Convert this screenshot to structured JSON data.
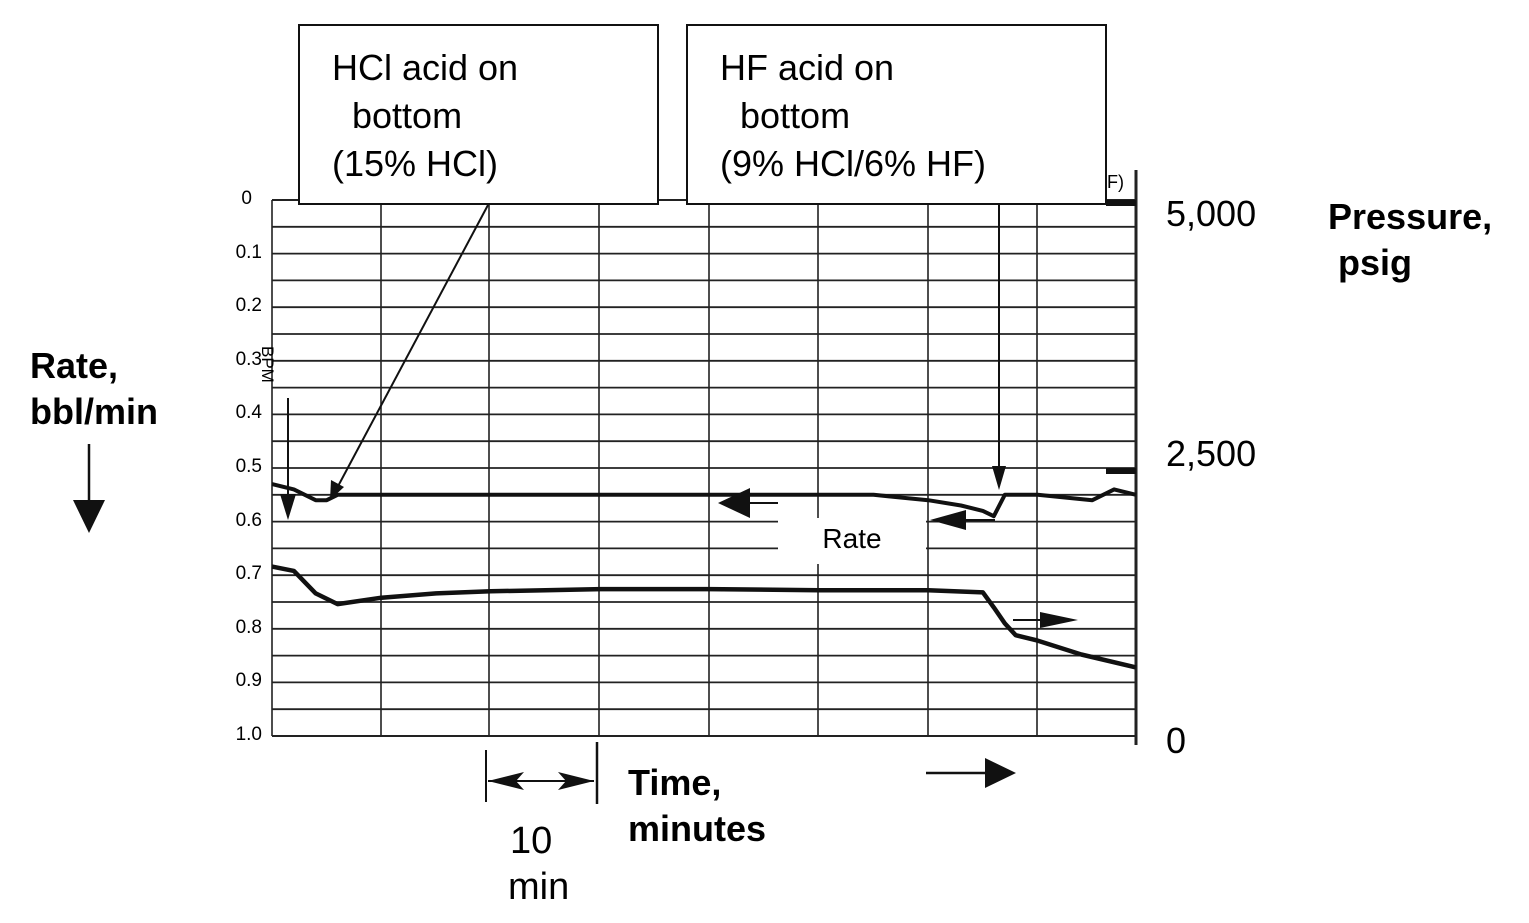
{
  "chart_data": {
    "type": "line",
    "title": "",
    "annotations": [
      {
        "text": "HCl acid on\n  bottom\n(15% HCl)",
        "points_to_time_min": 5.0
      },
      {
        "text": "HF acid on\n  bottom\n(9% HCl/6% HF)",
        "points_to_time_min": 66.0
      },
      {
        "text": "Rate"
      },
      {
        "text": "BPM"
      }
    ],
    "xlabel": "Time,\nminutes",
    "x_scale_note": "10\nmin",
    "x_grid_minutes": [
      0,
      10,
      20,
      30,
      40,
      50,
      60,
      70,
      80
    ],
    "xlim": [
      0,
      79
    ],
    "left_axis": {
      "label": "Rate,\nbbl/min",
      "direction": "inverted (0 at top, 1.0 at bottom)",
      "ticks": [
        "0",
        "0.1",
        "0.2",
        "0.3",
        "0.4",
        "0.5",
        "0.6",
        "0.7",
        "0.8",
        "0.9",
        "1.0"
      ],
      "ylim": [
        0,
        1.0
      ]
    },
    "right_axis": {
      "label": "Pressure,\n psig",
      "ticks": [
        "5,000",
        "2,500",
        "0"
      ],
      "ylim": [
        0,
        5000
      ]
    },
    "series": [
      {
        "name": "Rate (bbl/min, left axis)",
        "x": [
          0,
          2,
          4,
          5,
          6,
          10,
          15,
          20,
          25,
          30,
          35,
          40,
          45,
          50,
          55,
          60,
          63,
          65,
          66,
          67,
          70,
          75,
          77,
          79
        ],
        "values": [
          0.53,
          0.54,
          0.56,
          0.56,
          0.55,
          0.55,
          0.55,
          0.55,
          0.55,
          0.55,
          0.55,
          0.55,
          0.55,
          0.55,
          0.55,
          0.56,
          0.57,
          0.58,
          0.59,
          0.55,
          0.55,
          0.56,
          0.54,
          0.55
        ]
      },
      {
        "name": "Pressure (psig, right axis)",
        "x": [
          0,
          2,
          4,
          6,
          10,
          15,
          20,
          25,
          30,
          40,
          50,
          60,
          65,
          66,
          67,
          68,
          70,
          74,
          79
        ],
        "values": [
          1580,
          1540,
          1330,
          1230,
          1290,
          1330,
          1350,
          1360,
          1370,
          1370,
          1360,
          1360,
          1340,
          1200,
          1050,
          940,
          890,
          760,
          640
        ]
      }
    ],
    "grid": true,
    "legend": null
  },
  "labels": {
    "box_hcl": "HCl acid on\n  bottom\n(15% HCl)",
    "box_hf": "HF acid on\n  bottom\n(9% HCl/6% HF)",
    "rate_series_label": "Rate",
    "bpm": "BPM",
    "left_title": "Rate,\nbbl/min",
    "right_title": "Pressure,\n psig",
    "x_title": "Time,\nminutes",
    "scale_10": "10",
    "scale_min": "min",
    "left_ticks": [
      "0",
      "0.1",
      "0.2",
      "0.3",
      "0.4",
      "0.5",
      "0.6",
      "0.7",
      "0.8",
      "0.9",
      "1.0"
    ],
    "right_ticks": [
      "5,000",
      "2,500",
      "0"
    ],
    "corner_fragment": "F)"
  }
}
